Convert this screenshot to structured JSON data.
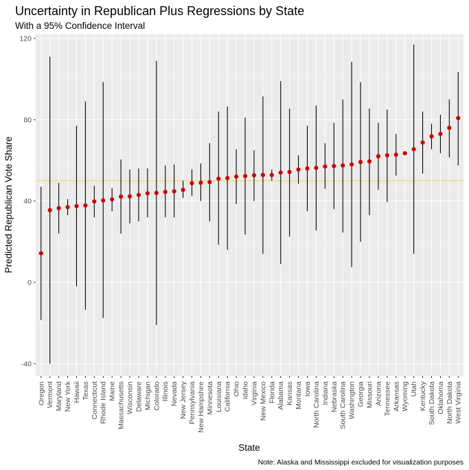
{
  "chart_data": {
    "type": "scatter",
    "title": "Uncertainty in Republican Plus Regressions by State",
    "subtitle": "With a 95% Confidence Interval",
    "xlabel": "State",
    "ylabel": "Predicted Republican Vote Share",
    "caption": "Note: Alaska and Mississippi excluded for visualization purposes",
    "ylim": [
      -46,
      122
    ],
    "yticks": [
      -40,
      0,
      40,
      80,
      120
    ],
    "ytick_labels": [
      "-40",
      "0",
      "40",
      "80",
      "120"
    ],
    "reference_line": 50,
    "grid": true,
    "colors": {
      "panel": "#ebebeb",
      "grid_major": "#ffffff",
      "grid_minor": "#f5f5f5",
      "point": "#cc0000",
      "errorbar": "#000000",
      "reference_line": "#f5d76e",
      "tick_label": "#4d4d4d"
    },
    "points": [
      {
        "state": "Oregon",
        "y": 14.3,
        "lo": -18.5,
        "hi": 47.0
      },
      {
        "state": "Vermont",
        "y": 35.5,
        "lo": -40.0,
        "hi": 111.0
      },
      {
        "state": "Maryland",
        "y": 36.5,
        "lo": 24.0,
        "hi": 49.0
      },
      {
        "state": "New York",
        "y": 37.0,
        "lo": 33.0,
        "hi": 41.0
      },
      {
        "state": "Hawaii",
        "y": 37.5,
        "lo": -2.0,
        "hi": 77.0
      },
      {
        "state": "Texas",
        "y": 37.8,
        "lo": -13.5,
        "hi": 89.0
      },
      {
        "state": "Connecticut",
        "y": 39.8,
        "lo": 32.0,
        "hi": 47.5
      },
      {
        "state": "Rhode Island",
        "y": 40.3,
        "lo": -17.5,
        "hi": 98.5
      },
      {
        "state": "Maine",
        "y": 40.8,
        "lo": 35.0,
        "hi": 46.5
      },
      {
        "state": "Massachusetts",
        "y": 42.2,
        "lo": 24.0,
        "hi": 60.5
      },
      {
        "state": "Wisconsin",
        "y": 42.3,
        "lo": 29.0,
        "hi": 55.5
      },
      {
        "state": "Delaware",
        "y": 43.0,
        "lo": 30.0,
        "hi": 56.0
      },
      {
        "state": "Michigan",
        "y": 43.8,
        "lo": 32.0,
        "hi": 56.0
      },
      {
        "state": "Colorado",
        "y": 44.0,
        "lo": -21.0,
        "hi": 109.0
      },
      {
        "state": "Illinois",
        "y": 44.5,
        "lo": 32.0,
        "hi": 57.5
      },
      {
        "state": "Nevada",
        "y": 44.8,
        "lo": 32.0,
        "hi": 58.0
      },
      {
        "state": "New Jersey",
        "y": 45.5,
        "lo": 41.5,
        "hi": 50.0
      },
      {
        "state": "Pennsylvania",
        "y": 48.8,
        "lo": 42.5,
        "hi": 55.5
      },
      {
        "state": "New Hampshire",
        "y": 49.0,
        "lo": 40.0,
        "hi": 58.5
      },
      {
        "state": "Minnesota",
        "y": 49.3,
        "lo": 30.0,
        "hi": 68.5
      },
      {
        "state": "Louisiana",
        "y": 51.0,
        "lo": 18.5,
        "hi": 84.0
      },
      {
        "state": "California",
        "y": 51.3,
        "lo": 16.0,
        "hi": 86.5
      },
      {
        "state": "Ohio",
        "y": 52.0,
        "lo": 38.5,
        "hi": 65.5
      },
      {
        "state": "Idaho",
        "y": 52.3,
        "lo": 23.5,
        "hi": 81.0
      },
      {
        "state": "Virginia",
        "y": 52.7,
        "lo": 40.0,
        "hi": 65.0
      },
      {
        "state": "New Mexico",
        "y": 52.8,
        "lo": 14.0,
        "hi": 91.5
      },
      {
        "state": "Florida",
        "y": 52.8,
        "lo": 50.0,
        "hi": 55.5
      },
      {
        "state": "Alabama",
        "y": 54.0,
        "lo": 9.0,
        "hi": 99.0
      },
      {
        "state": "Kansas",
        "y": 54.3,
        "lo": 22.5,
        "hi": 85.5
      },
      {
        "state": "Montana",
        "y": 55.5,
        "lo": 48.5,
        "hi": 62.5
      },
      {
        "state": "Iowa",
        "y": 56.0,
        "lo": 35.0,
        "hi": 77.0
      },
      {
        "state": "North Carolina",
        "y": 56.3,
        "lo": 25.5,
        "hi": 87.0
      },
      {
        "state": "Indiana",
        "y": 57.0,
        "lo": 46.0,
        "hi": 68.5
      },
      {
        "state": "Nebraska",
        "y": 57.2,
        "lo": 36.0,
        "hi": 78.5
      },
      {
        "state": "South Carolina",
        "y": 57.5,
        "lo": 24.5,
        "hi": 90.0
      },
      {
        "state": "Washington",
        "y": 58.0,
        "lo": 7.5,
        "hi": 108.5
      },
      {
        "state": "Georgia",
        "y": 59.2,
        "lo": 20.0,
        "hi": 98.5
      },
      {
        "state": "Missouri",
        "y": 59.5,
        "lo": 33.0,
        "hi": 85.5
      },
      {
        "state": "Arizona",
        "y": 62.0,
        "lo": 45.5,
        "hi": 78.5
      },
      {
        "state": "Tennessee",
        "y": 62.5,
        "lo": 39.5,
        "hi": 85.0
      },
      {
        "state": "Arkansas",
        "y": 62.8,
        "lo": 52.5,
        "hi": 73.0
      },
      {
        "state": "Wyoming",
        "y": 63.5,
        "lo": 63.0,
        "hi": 64.0
      },
      {
        "state": "Utah",
        "y": 65.5,
        "lo": 14.0,
        "hi": 117.0
      },
      {
        "state": "Kentucky",
        "y": 68.8,
        "lo": 53.5,
        "hi": 84.0
      },
      {
        "state": "South Dakota",
        "y": 71.8,
        "lo": 65.5,
        "hi": 78.0
      },
      {
        "state": "Oklahoma",
        "y": 73.0,
        "lo": 63.5,
        "hi": 82.5
      },
      {
        "state": "North Dakota",
        "y": 76.0,
        "lo": 61.5,
        "hi": 90.0
      },
      {
        "state": "West Virginia",
        "y": 80.8,
        "lo": 57.5,
        "hi": 103.5
      }
    ]
  }
}
